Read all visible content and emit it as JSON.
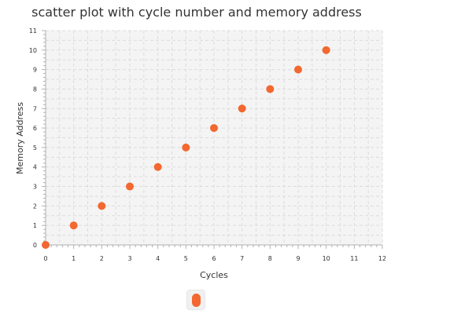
{
  "chart_data": {
    "type": "scatter",
    "title": "scatter plot with cycle number and memory address",
    "xlabel": "Cycles",
    "ylabel": "Memory Address",
    "xlim": [
      0,
      12
    ],
    "ylim": [
      0,
      11
    ],
    "xticks": [
      0,
      1,
      2,
      3,
      4,
      5,
      6,
      7,
      8,
      9,
      10,
      11,
      12
    ],
    "yticks": [
      0,
      1,
      2,
      3,
      4,
      5,
      6,
      7,
      8,
      9,
      10,
      11
    ],
    "grid": true,
    "legend": "bottom",
    "series": [
      {
        "color": "#f26830",
        "points": [
          {
            "x": 0,
            "y": 0
          },
          {
            "x": 1,
            "y": 1
          },
          {
            "x": 2,
            "y": 2
          },
          {
            "x": 3,
            "y": 3
          },
          {
            "x": 4,
            "y": 4
          },
          {
            "x": 5,
            "y": 5
          },
          {
            "x": 6,
            "y": 6
          },
          {
            "x": 7,
            "y": 7
          },
          {
            "x": 8,
            "y": 8
          },
          {
            "x": 9,
            "y": 9
          },
          {
            "x": 10,
            "y": 10
          }
        ]
      }
    ]
  },
  "colors": {
    "plot_background": "#f4f4f4",
    "grid": "#dcdcdc",
    "axis": "#b0b0b0",
    "text": "#333333"
  }
}
